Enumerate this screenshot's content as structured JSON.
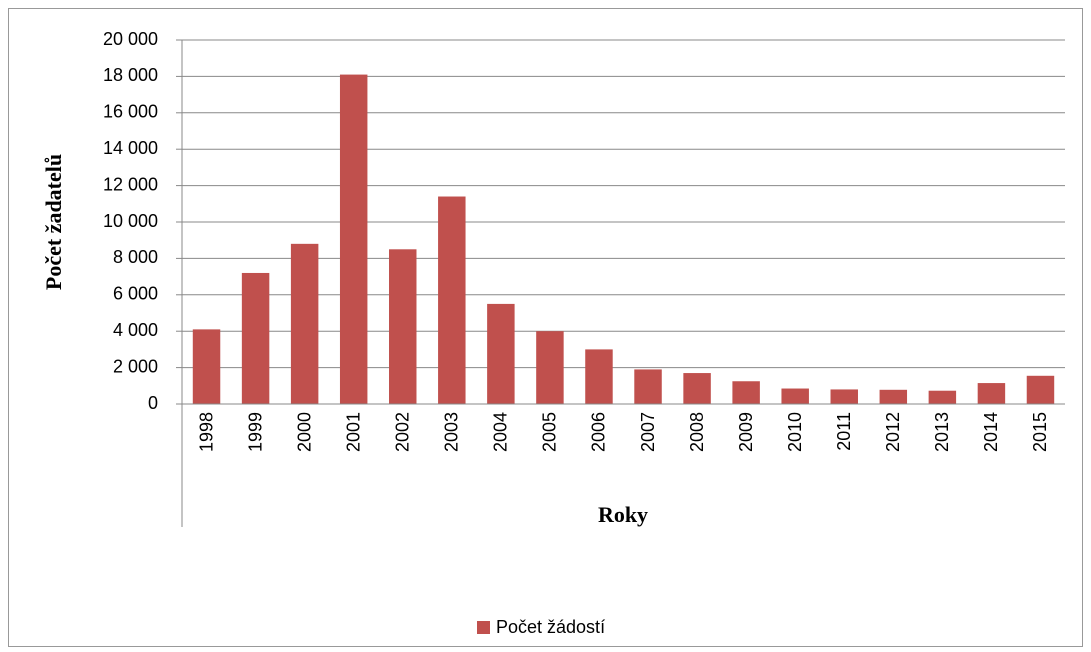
{
  "chart_data": {
    "type": "bar",
    "y_label": "Počet žadatelů",
    "x_label": "Roky",
    "categories": [
      "1998",
      "1999",
      "2000",
      "2001",
      "2002",
      "2003",
      "2004",
      "2005",
      "2006",
      "2007",
      "2008",
      "2009",
      "2010",
      "2011",
      "2012",
      "2013",
      "2014",
      "2015"
    ],
    "series": [
      {
        "name": "Počet žádostí",
        "color": "#c0504d",
        "values": [
          4100,
          7200,
          8800,
          18100,
          8500,
          11400,
          5500,
          4000,
          3000,
          1900,
          1700,
          1250,
          850,
          800,
          780,
          730,
          1150,
          1550
        ]
      }
    ],
    "ylim": [
      0,
      20000
    ],
    "yticks": [
      0,
      {
        "value": 2000,
        "label": "2 000"
      },
      {
        "value": 4000,
        "label": "4 000"
      },
      {
        "value": 6000,
        "label": "6 000"
      },
      {
        "value": 8000,
        "label": "8 000"
      },
      {
        "value": 10000,
        "label": "10 000"
      },
      {
        "value": 12000,
        "label": "12 000"
      },
      {
        "value": 14000,
        "label": "14 000"
      },
      {
        "value": 16000,
        "label": "16 000"
      },
      {
        "value": 18000,
        "label": "18 000"
      },
      {
        "value": 20000,
        "label": "20 000"
      }
    ],
    "grid": true,
    "legend": "bottom"
  }
}
